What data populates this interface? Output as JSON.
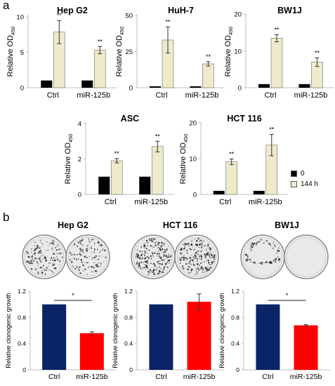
{
  "panels": {
    "a": "a",
    "b": "b"
  },
  "colors": {
    "od_series_0": "#000000",
    "od_series_144": "#eeeacb",
    "ctrl_bar": "#0b2466",
    "mir_bar": "#ff0000",
    "axis": "#bfbfbf",
    "text": "#000000"
  },
  "legend": [
    {
      "label": "0",
      "color": "#000000"
    },
    {
      "label": "144 h",
      "color": "#eeeacb"
    }
  ],
  "chart_data": [
    {
      "type": "bar",
      "title": "Hep G2",
      "ylabel_main": "Relative OD",
      "ylabel_sub": "450",
      "categories": [
        "Ctrl",
        "miR-125b"
      ],
      "ylim": [
        0,
        10
      ],
      "yticks": [
        0,
        5,
        10
      ],
      "series": [
        {
          "name": "0",
          "values": [
            1.0,
            1.0
          ]
        },
        {
          "name": "144 h",
          "values": [
            7.7,
            5.2
          ],
          "errors": [
            1.6,
            0.5
          ]
        }
      ],
      "annotations": [
        "**",
        "**"
      ]
    },
    {
      "type": "bar",
      "title": "HuH-7",
      "ylabel_main": "Relative OD",
      "ylabel_sub": "450",
      "categories": [
        "Ctrl",
        "miR-125b"
      ],
      "ylim": [
        0,
        50
      ],
      "yticks": [
        0,
        25,
        50
      ],
      "series": [
        {
          "name": "0",
          "values": [
            1,
            1
          ]
        },
        {
          "name": "144 h",
          "values": [
            33,
            16.5
          ],
          "errors": [
            9,
            1.5
          ]
        }
      ],
      "annotations": [
        "**",
        "**"
      ]
    },
    {
      "type": "bar",
      "title": "BW1J",
      "ylabel_main": "Relative OD",
      "ylabel_sub": "490",
      "categories": [
        "Ctrl",
        "miR-125b"
      ],
      "ylim": [
        0,
        20
      ],
      "yticks": [
        0,
        10,
        20
      ],
      "series": [
        {
          "name": "0",
          "values": [
            1,
            1
          ]
        },
        {
          "name": "144 h",
          "values": [
            13.7,
            7.1
          ],
          "errors": [
            1.0,
            1.2
          ]
        }
      ],
      "annotations": [
        "**",
        "**"
      ]
    },
    {
      "type": "bar",
      "title": "ASC",
      "ylabel_main": "Relative OD",
      "ylabel_sub": "450",
      "categories": [
        "Ctrl",
        "miR-125b"
      ],
      "ylim": [
        0,
        4
      ],
      "yticks": [
        0,
        2,
        4
      ],
      "series": [
        {
          "name": "0",
          "values": [
            1.0,
            1.0
          ]
        },
        {
          "name": "144 h",
          "values": [
            1.9,
            2.7
          ],
          "errors": [
            0.12,
            0.3
          ]
        }
      ],
      "annotations": [
        "**",
        "**"
      ]
    },
    {
      "type": "bar",
      "title": "HCT 116",
      "ylabel_main": "Relative OD",
      "ylabel_sub": "450",
      "categories": [
        "Ctrl",
        "miR-125b"
      ],
      "ylim": [
        0,
        20
      ],
      "yticks": [
        0,
        10,
        20
      ],
      "series": [
        {
          "name": "0",
          "values": [
            1,
            1
          ]
        },
        {
          "name": "144 h",
          "values": [
            9.2,
            13.9
          ],
          "errors": [
            0.8,
            3.0
          ]
        }
      ],
      "annotations": [
        "**",
        "**"
      ]
    },
    {
      "type": "bar",
      "title": "Hep G2",
      "ylabel_main": "Relative clonogenic growth",
      "categories": [
        "Ctrl",
        "miR-125b"
      ],
      "ylim": [
        0,
        1.2
      ],
      "yticks": [
        "0",
        "0.4",
        "0.8",
        "1.2"
      ],
      "values": [
        1.0,
        0.56
      ],
      "errors": [
        0,
        0.02
      ],
      "significance": "*"
    },
    {
      "type": "bar",
      "title": "HCT 116",
      "ylabel_main": "Relative clonogenic growth",
      "categories": [
        "Ctrl",
        "miR-125b"
      ],
      "ylim": [
        0,
        1.2
      ],
      "yticks": [
        "0",
        "0.4",
        "0.8",
        "1.2"
      ],
      "values": [
        1.0,
        1.04
      ],
      "errors": [
        0,
        0.12
      ],
      "significance": ""
    },
    {
      "type": "bar",
      "title": "BW1J",
      "ylabel_main": "Relative clonogenic growth",
      "categories": [
        "Ctrl",
        "miR-125b"
      ],
      "ylim": [
        0,
        1.2
      ],
      "yticks": [
        "0",
        "0.4",
        "0.8",
        "1.2"
      ],
      "values": [
        1.0,
        0.68
      ],
      "errors": [
        0,
        0.01
      ],
      "significance": "*"
    }
  ],
  "dishes": [
    {
      "density": [
        0.55,
        0.45
      ]
    },
    {
      "density": [
        0.8,
        0.75
      ]
    },
    {
      "density": [
        0.3,
        0.0
      ]
    }
  ]
}
